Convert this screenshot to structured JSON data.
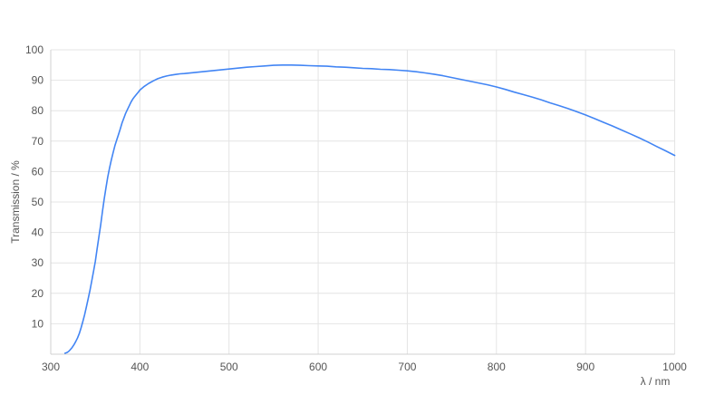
{
  "chart_data": {
    "type": "line",
    "title": "",
    "xlabel": "λ / nm",
    "ylabel": "Transmission / %",
    "xlim": [
      300,
      1000
    ],
    "ylim": [
      0,
      100
    ],
    "x_ticks": [
      300,
      400,
      500,
      600,
      700,
      800,
      900,
      1000
    ],
    "y_ticks": [
      10,
      20,
      30,
      40,
      50,
      60,
      70,
      80,
      90,
      100
    ],
    "grid": true,
    "legend": "none",
    "colors": {
      "line": "#4285f4",
      "grid": "#e4e4e4",
      "axis": "#d0d0d0",
      "tick_text": "#555555",
      "background": "#ffffff"
    },
    "series": [
      {
        "name": "Transmission",
        "x": [
          316,
          318,
          320,
          322,
          324,
          326,
          328,
          330,
          332,
          334,
          336,
          338,
          340,
          342,
          344,
          346,
          348,
          350,
          352,
          354,
          356,
          358,
          360,
          362,
          364,
          366,
          368,
          370,
          372,
          374,
          376,
          378,
          380,
          382,
          384,
          386,
          388,
          390,
          392,
          394,
          396,
          398,
          400,
          405,
          410,
          415,
          420,
          425,
          430,
          435,
          440,
          445,
          450,
          460,
          470,
          480,
          490,
          500,
          510,
          520,
          530,
          540,
          550,
          560,
          570,
          580,
          590,
          600,
          610,
          620,
          630,
          640,
          650,
          660,
          670,
          680,
          690,
          700,
          710,
          720,
          730,
          740,
          750,
          760,
          770,
          780,
          790,
          800,
          810,
          820,
          830,
          840,
          850,
          860,
          870,
          880,
          890,
          900,
          910,
          920,
          930,
          940,
          950,
          960,
          970,
          980,
          990,
          1000
        ],
        "y": [
          0.3,
          0.5,
          0.9,
          1.5,
          2.2,
          3.1,
          4.1,
          5.3,
          6.8,
          8.6,
          10.7,
          13.0,
          15.5,
          18.2,
          21.0,
          24.0,
          27.2,
          30.5,
          34.5,
          38.5,
          42.5,
          46.8,
          51.0,
          54.8,
          58.2,
          61.2,
          63.9,
          66.3,
          68.5,
          70.4,
          72.2,
          74.0,
          76.0,
          77.6,
          79.1,
          80.4,
          81.6,
          82.8,
          83.8,
          84.6,
          85.3,
          86.0,
          86.8,
          88.0,
          89.0,
          89.8,
          90.5,
          91.0,
          91.4,
          91.7,
          91.9,
          92.1,
          92.2,
          92.5,
          92.8,
          93.1,
          93.4,
          93.7,
          94.0,
          94.3,
          94.5,
          94.7,
          94.9,
          95.0,
          95.0,
          94.9,
          94.8,
          94.7,
          94.6,
          94.4,
          94.3,
          94.1,
          93.9,
          93.8,
          93.6,
          93.5,
          93.3,
          93.1,
          92.8,
          92.4,
          92.0,
          91.5,
          90.9,
          90.3,
          89.7,
          89.1,
          88.5,
          87.8,
          87.0,
          86.1,
          85.3,
          84.5,
          83.6,
          82.6,
          81.7,
          80.7,
          79.7,
          78.6,
          77.4,
          76.2,
          75.0,
          73.7,
          72.4,
          71.1,
          69.7,
          68.2,
          66.8,
          65.3
        ]
      }
    ]
  }
}
